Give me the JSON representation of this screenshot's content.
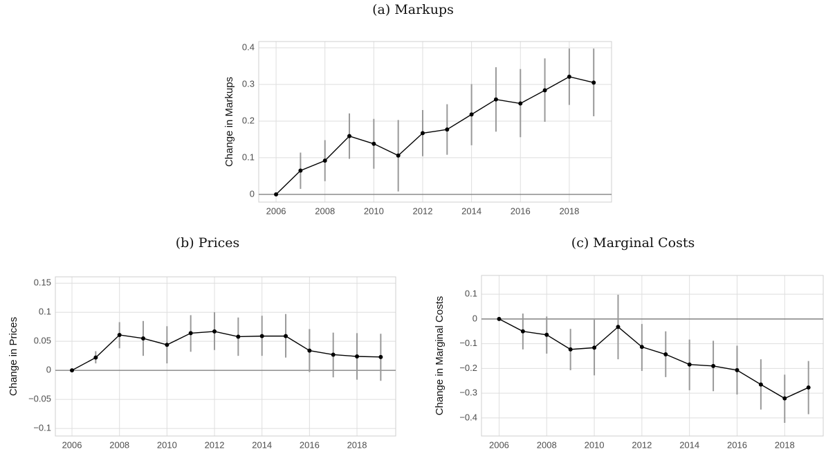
{
  "chart_data": [
    {
      "type": "line",
      "title": "(a) Markups",
      "y_label": "Change in Markups",
      "x": [
        2006,
        2007,
        2008,
        2009,
        2010,
        2011,
        2012,
        2013,
        2014,
        2015,
        2016,
        2017,
        2018,
        2019
      ],
      "values": [
        0,
        0.065,
        0.092,
        0.159,
        0.138,
        0.106,
        0.167,
        0.177,
        0.218,
        0.259,
        0.248,
        0.284,
        0.321,
        0.305
      ],
      "ci_lower": [
        0,
        0.015,
        0.036,
        0.097,
        0.07,
        0.008,
        0.104,
        0.108,
        0.134,
        0.171,
        0.156,
        0.198,
        0.244,
        0.213
      ],
      "ci_upper": [
        0,
        0.114,
        0.148,
        0.221,
        0.206,
        0.203,
        0.23,
        0.246,
        0.301,
        0.347,
        0.342,
        0.371,
        0.398,
        0.398
      ],
      "xlim": [
        2005.29,
        2019.73
      ],
      "xticks": [
        2006,
        2008,
        2010,
        2012,
        2014,
        2016,
        2018
      ],
      "ylim": [
        -0.021,
        0.417
      ],
      "yticks": [
        0,
        0.1,
        0.2,
        0.3,
        0.4
      ],
      "reference_line": 0,
      "grid": true,
      "color": "#000000",
      "error_color": "#999999"
    },
    {
      "type": "line",
      "title": "(b) Prices",
      "y_label": "Change in Prices",
      "x": [
        2006,
        2007,
        2008,
        2009,
        2010,
        2011,
        2012,
        2013,
        2014,
        2015,
        2016,
        2017,
        2018,
        2019
      ],
      "values": [
        0,
        0.022,
        0.061,
        0.055,
        0.044,
        0.064,
        0.067,
        0.058,
        0.059,
        0.059,
        0.034,
        0.027,
        0.024,
        0.023
      ],
      "ci_lower": [
        0,
        0.012,
        0.038,
        0.025,
        0.012,
        0.032,
        0.035,
        0.025,
        0.025,
        0.022,
        -0.003,
        -0.012,
        -0.016,
        -0.018
      ],
      "ci_upper": [
        0,
        0.033,
        0.083,
        0.085,
        0.076,
        0.095,
        0.1,
        0.091,
        0.094,
        0.097,
        0.071,
        0.065,
        0.064,
        0.063
      ],
      "xlim": [
        2005.3,
        2019.63
      ],
      "xticks": [
        2006,
        2008,
        2010,
        2012,
        2014,
        2016,
        2018
      ],
      "ylim": [
        -0.113,
        0.161
      ],
      "yticks": [
        {
          "value": -0.1,
          "label": "−0.1"
        },
        {
          "value": -0.05,
          "label": "−0.05"
        },
        0,
        0.05,
        0.1,
        0.15
      ],
      "reference_line": 0,
      "grid": true,
      "color": "#000000",
      "error_color": "#999999"
    },
    {
      "type": "line",
      "title": "(c) Marginal Costs",
      "y_label": "Change in Marginal Costs",
      "x": [
        2006,
        2007,
        2008,
        2009,
        2010,
        2011,
        2012,
        2013,
        2014,
        2015,
        2016,
        2017,
        2018,
        2019
      ],
      "values": [
        0,
        -0.05,
        -0.064,
        -0.123,
        -0.116,
        -0.032,
        -0.113,
        -0.143,
        -0.184,
        -0.19,
        -0.207,
        -0.265,
        -0.321,
        -0.277
      ],
      "ci_lower": [
        0,
        -0.123,
        -0.14,
        -0.207,
        -0.228,
        -0.163,
        -0.21,
        -0.235,
        -0.288,
        -0.292,
        -0.305,
        -0.366,
        -0.42,
        -0.385
      ],
      "ci_upper": [
        0,
        0.022,
        0.01,
        -0.04,
        -0.003,
        0.098,
        -0.02,
        -0.05,
        -0.083,
        -0.088,
        -0.108,
        -0.163,
        -0.225,
        -0.17
      ],
      "xlim": [
        2005.26,
        2019.62
      ],
      "xticks": [
        2006,
        2008,
        2010,
        2012,
        2014,
        2016,
        2018
      ],
      "ylim": [
        -0.473,
        0.176
      ],
      "yticks": [
        {
          "value": -0.4,
          "label": "−0.4"
        },
        {
          "value": -0.3,
          "label": "−0.3"
        },
        {
          "value": -0.2,
          "label": "−0.2"
        },
        {
          "value": -0.1,
          "label": "−0.1"
        },
        0,
        0.1
      ],
      "reference_line": 0,
      "grid": true,
      "color": "#000000",
      "error_color": "#999999"
    }
  ]
}
